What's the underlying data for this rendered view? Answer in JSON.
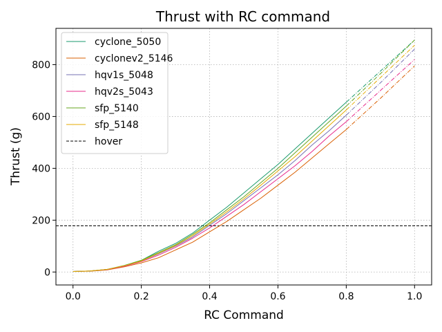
{
  "chart_data": {
    "type": "line",
    "title": "Thrust with RC command",
    "xlabel": "RC Command",
    "ylabel": "Thrust (g)",
    "xlim": [
      -0.05,
      1.05
    ],
    "ylim": [
      -50,
      940
    ],
    "xticks": [
      0.0,
      0.2,
      0.4,
      0.6,
      0.8,
      1.0
    ],
    "xtick_labels": [
      "0.0",
      "0.2",
      "0.4",
      "0.6",
      "0.8",
      "1.0"
    ],
    "yticks": [
      0,
      200,
      400,
      600,
      800
    ],
    "ytick_labels": [
      "0",
      "200",
      "400",
      "600",
      "800"
    ],
    "grid": true,
    "legend_position": "upper-left",
    "measured_range": [
      0.0,
      0.8
    ],
    "extrapolated_range": [
      0.8,
      1.0
    ],
    "series": [
      {
        "name": "cyclone_5050",
        "color": "#1a9a6c",
        "x": [
          0.0,
          0.05,
          0.1,
          0.15,
          0.2,
          0.25,
          0.3,
          0.35,
          0.4,
          0.45,
          0.5,
          0.55,
          0.6,
          0.65,
          0.7,
          0.75,
          0.8,
          0.9,
          1.0
        ],
        "y": [
          2,
          4,
          10,
          25,
          45,
          80,
          110,
          150,
          200,
          250,
          305,
          360,
          415,
          475,
          535,
          595,
          655,
          775,
          895
        ]
      },
      {
        "name": "cyclonev2_5146",
        "color": "#d95f02",
        "x": [
          0.0,
          0.05,
          0.1,
          0.15,
          0.2,
          0.25,
          0.3,
          0.35,
          0.4,
          0.45,
          0.5,
          0.55,
          0.6,
          0.65,
          0.7,
          0.75,
          0.8,
          0.9,
          1.0
        ],
        "y": [
          2,
          3,
          8,
          20,
          35,
          55,
          85,
          115,
          155,
          195,
          240,
          285,
          335,
          385,
          440,
          495,
          550,
          670,
          795
        ]
      },
      {
        "name": "hqv1s_5048",
        "color": "#7570b3",
        "x": [
          0.0,
          0.05,
          0.1,
          0.15,
          0.2,
          0.25,
          0.3,
          0.35,
          0.4,
          0.45,
          0.5,
          0.55,
          0.6,
          0.65,
          0.7,
          0.75,
          0.8,
          0.9,
          1.0
        ],
        "y": [
          2,
          4,
          10,
          24,
          42,
          70,
          100,
          135,
          180,
          225,
          275,
          325,
          375,
          430,
          490,
          545,
          605,
          730,
          860
        ]
      },
      {
        "name": "hqv2s_5043",
        "color": "#e7298a",
        "x": [
          0.0,
          0.05,
          0.1,
          0.15,
          0.2,
          0.25,
          0.3,
          0.35,
          0.4,
          0.45,
          0.5,
          0.55,
          0.6,
          0.65,
          0.7,
          0.75,
          0.8,
          0.9,
          1.0
        ],
        "y": [
          2,
          4,
          9,
          22,
          40,
          65,
          95,
          130,
          170,
          215,
          260,
          310,
          360,
          410,
          465,
          525,
          580,
          700,
          820
        ]
      },
      {
        "name": "sfp_5140",
        "color": "#66a61e",
        "x": [
          0.0,
          0.05,
          0.1,
          0.15,
          0.2,
          0.25,
          0.3,
          0.35,
          0.4,
          0.45,
          0.5,
          0.55,
          0.6,
          0.65,
          0.7,
          0.75,
          0.8,
          0.9,
          1.0
        ],
        "y": [
          2,
          4,
          10,
          25,
          45,
          75,
          105,
          145,
          190,
          240,
          290,
          345,
          400,
          460,
          520,
          580,
          640,
          765,
          895
        ]
      },
      {
        "name": "sfp_5148",
        "color": "#e6ab02",
        "x": [
          0.0,
          0.05,
          0.1,
          0.15,
          0.2,
          0.25,
          0.3,
          0.35,
          0.4,
          0.45,
          0.5,
          0.55,
          0.6,
          0.65,
          0.7,
          0.75,
          0.8,
          0.9,
          1.0
        ],
        "y": [
          2,
          4,
          10,
          24,
          42,
          72,
          102,
          140,
          185,
          232,
          282,
          335,
          390,
          445,
          505,
          565,
          625,
          750,
          875
        ]
      }
    ],
    "hlines": [
      {
        "name": "hover",
        "y": 178,
        "color": "#000000",
        "style": "dashed"
      }
    ]
  }
}
